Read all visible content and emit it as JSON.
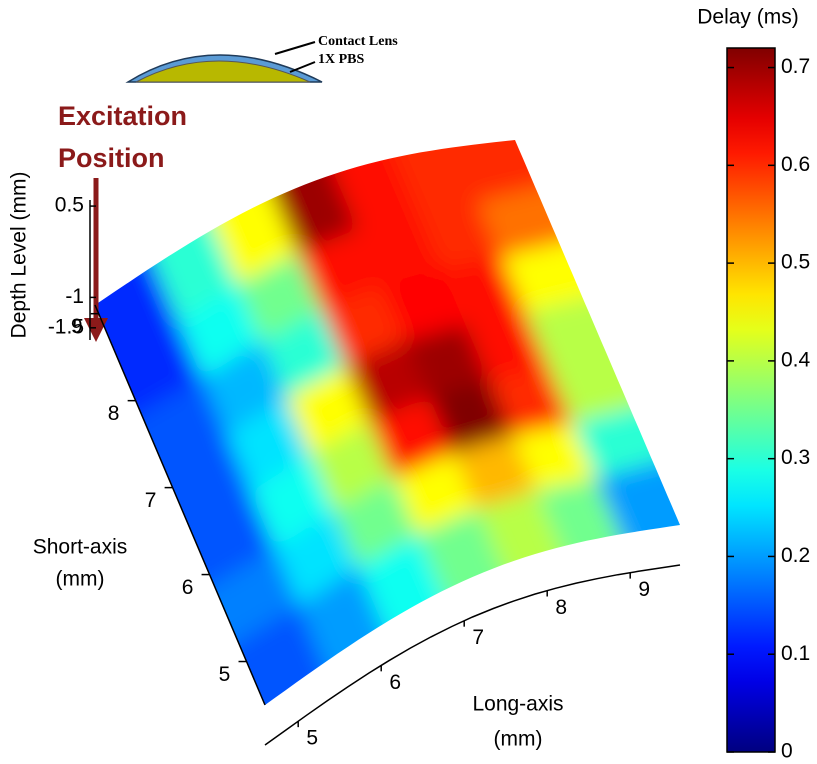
{
  "chart_data": {
    "type": "surface",
    "colormap": "jet",
    "colorbar_label": "Delay (ms)",
    "clim": [
      0,
      0.72
    ],
    "cticks": [
      0,
      0.1,
      0.2,
      0.3,
      0.4,
      0.5,
      0.6,
      0.7
    ],
    "zlabel": "Depth Level (mm)",
    "zlim": [
      -1.7,
      0.6
    ],
    "zticks": [
      0.5,
      -1,
      -1.5
    ],
    "ylabel": [
      "Short-axis",
      "(mm)"
    ],
    "ylim": [
      4.5,
      9.1
    ],
    "yticks": [
      5,
      6,
      7,
      8,
      9
    ],
    "xlabel": [
      "Long-axis",
      "(mm)"
    ],
    "xlim": [
      4.6,
      9.6
    ],
    "xticks": [
      5,
      6,
      7,
      8,
      9
    ],
    "annotation": [
      "Excitation",
      "Position"
    ],
    "inset_labels": [
      "Contact Lens",
      "1X PBS"
    ],
    "values": [
      [
        0.12,
        0.3,
        0.45,
        0.7,
        0.62,
        0.6,
        0.6
      ],
      [
        0.12,
        0.28,
        0.35,
        0.62,
        0.62,
        0.6,
        0.55
      ],
      [
        0.15,
        0.22,
        0.3,
        0.6,
        0.63,
        0.62,
        0.45
      ],
      [
        0.15,
        0.25,
        0.45,
        0.68,
        0.7,
        0.62,
        0.4
      ],
      [
        0.15,
        0.28,
        0.4,
        0.62,
        0.72,
        0.6,
        0.4
      ],
      [
        0.18,
        0.25,
        0.35,
        0.45,
        0.5,
        0.45,
        0.3
      ],
      [
        0.15,
        0.2,
        0.28,
        0.35,
        0.4,
        0.35,
        0.2
      ]
    ]
  }
}
